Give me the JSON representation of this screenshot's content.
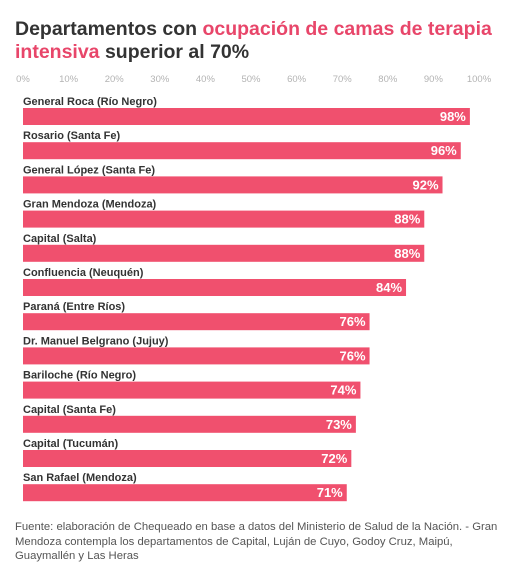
{
  "title": {
    "part1": "Departamentos con ",
    "part2": "ocupación de camas de terapia intensiva",
    "part3": " superior al 70%"
  },
  "source": "Fuente: elaboración de Chequeado en base a datos del Ministerio de Salud de la Nación. - Gran Mendoza contempla los departamentos de Capital, Luján de Cuyo, Godoy Cruz, Maipú, Guaymallén y Las Heras",
  "colors": {
    "bar": "#f0506e",
    "highlight": "#e8466a",
    "text": "#333333",
    "tick": "#b3b3b3"
  },
  "chart_data": {
    "type": "bar",
    "orientation": "horizontal",
    "xlim": [
      0,
      100
    ],
    "ticks": [
      0,
      10,
      20,
      30,
      40,
      50,
      60,
      70,
      80,
      90,
      100
    ],
    "tick_suffix": "%",
    "grid": false,
    "categories": [
      "General Roca (Río Negro)",
      "Rosario (Santa Fe)",
      "General López (Santa Fe)",
      "Gran Mendoza (Mendoza)",
      "Capital (Salta)",
      "Confluencia (Neuquén)",
      "Paraná (Entre Ríos)",
      "Dr. Manuel Belgrano (Jujuy)",
      "Bariloche (Río Negro)",
      "Capital (Santa Fe)",
      "Capital (Tucumán)",
      "San Rafael (Mendoza)"
    ],
    "values": [
      98,
      96,
      92,
      88,
      88,
      84,
      76,
      76,
      74,
      73,
      72,
      71
    ]
  }
}
